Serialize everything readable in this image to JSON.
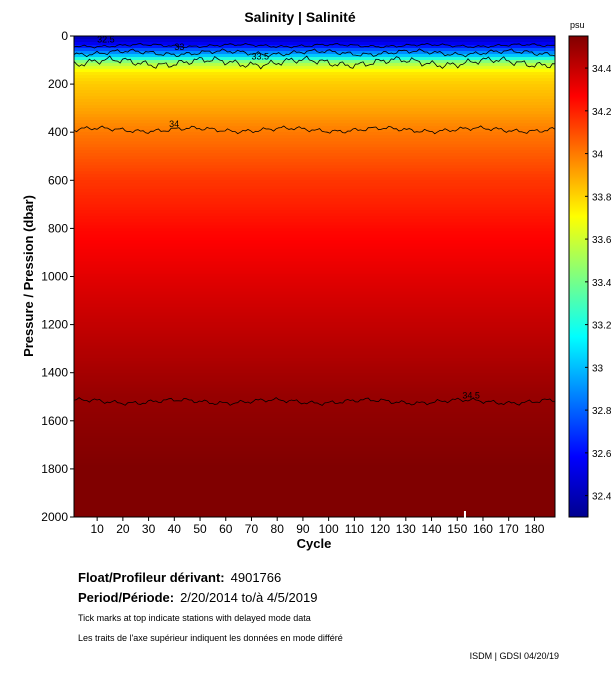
{
  "chart_data": {
    "type": "heatmap",
    "title": "Salinity | Salinité",
    "xlabel": "Cycle",
    "ylabel": "Pressure / Pression (dbar)",
    "x_ticks": [
      10,
      20,
      30,
      40,
      50,
      60,
      70,
      80,
      90,
      100,
      110,
      120,
      130,
      140,
      150,
      160,
      170,
      180
    ],
    "xlim": [
      1,
      188
    ],
    "y_ticks": [
      0,
      200,
      400,
      600,
      800,
      1000,
      1200,
      1400,
      1600,
      1800,
      2000
    ],
    "ylim": [
      2000,
      0
    ],
    "y_reversed": true,
    "colorbar": {
      "unit": "psu",
      "ticks": [
        "32.4",
        "32.6",
        "32.8",
        "33",
        "33.2",
        "33.4",
        "33.6",
        "33.8",
        "34",
        "34.2",
        "34.4"
      ],
      "range": [
        32.3,
        34.55
      ],
      "colormap": "jet"
    },
    "contours": [
      {
        "label": "32.5",
        "pressure": 40
      },
      {
        "label": "33",
        "pressure": 70
      },
      {
        "label": "33.5",
        "pressure": 110
      },
      {
        "label": "34",
        "pressure": 390
      },
      {
        "label": "34.5",
        "pressure": 1520
      }
    ],
    "salinity_profile": [
      {
        "pressure": 0,
        "salinity": 32.4
      },
      {
        "pressure": 40,
        "salinity": 32.6
      },
      {
        "pressure": 80,
        "salinity": 33.0
      },
      {
        "pressure": 110,
        "salinity": 33.5
      },
      {
        "pressure": 150,
        "salinity": 33.75
      },
      {
        "pressure": 200,
        "salinity": 33.82
      },
      {
        "pressure": 300,
        "salinity": 33.9
      },
      {
        "pressure": 400,
        "salinity": 34.0
      },
      {
        "pressure": 600,
        "salinity": 34.15
      },
      {
        "pressure": 800,
        "salinity": 34.25
      },
      {
        "pressure": 1000,
        "salinity": 34.33
      },
      {
        "pressure": 1200,
        "salinity": 34.4
      },
      {
        "pressure": 1500,
        "salinity": 34.5
      },
      {
        "pressure": 1800,
        "salinity": 34.55
      },
      {
        "pressure": 2000,
        "salinity": 34.58
      }
    ],
    "delayed_mode_tick_cycle": 153
  },
  "info": {
    "float_label": "Float/Profileur dérivant:",
    "float_id": "4901766",
    "period_label": "Period/Période:",
    "period_value": "2/20/2014  to/à  4/5/2019",
    "note_en": "Tick marks at top indicate stations with delayed mode data",
    "note_fr": "Les traits de l'axe supérieur indiquent les données en mode différé",
    "credit": "ISDM | GDSI 04/20/19"
  }
}
